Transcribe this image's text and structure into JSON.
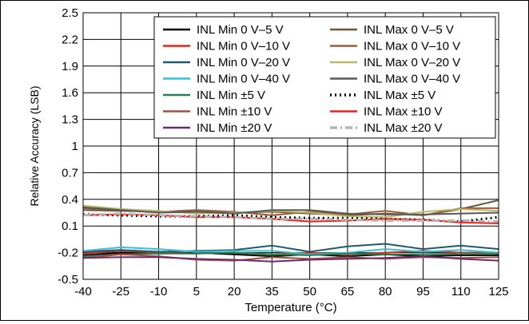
{
  "chart_data": {
    "type": "line",
    "title": "",
    "xlabel": "Temperature (°C)",
    "ylabel": "Relative Accuracy (LSB)",
    "xlim": [
      -40,
      125
    ],
    "ylim": [
      -0.5,
      2.5
    ],
    "x": [
      -40,
      -25,
      -10,
      5,
      20,
      35,
      50,
      65,
      80,
      95,
      110,
      125
    ],
    "x_ticks": [
      "-40",
      "-25",
      "-10",
      "5",
      "20",
      "35",
      "50",
      "65",
      "80",
      "95",
      "110",
      "125"
    ],
    "y_ticks": [
      "-0.5",
      "-0.2",
      "0.1",
      "0.4",
      "0.7",
      "1",
      "1.3",
      "1.6",
      "1.9",
      "2.2",
      "2.5"
    ],
    "y_tick_values": [
      -0.5,
      -0.2,
      0.1,
      0.4,
      0.7,
      1.0,
      1.3,
      1.6,
      1.9,
      2.2,
      2.5
    ],
    "grid": true,
    "legend_position": "top-right",
    "series": [
      {
        "name": "INL Min 0 V–5 V",
        "color": "#000000",
        "dash": "solid",
        "values": [
          -0.23,
          -0.2,
          -0.21,
          -0.2,
          -0.22,
          -0.24,
          -0.22,
          -0.24,
          -0.22,
          -0.24,
          -0.23,
          -0.23
        ]
      },
      {
        "name": "INL Min 0 V–10 V",
        "color": "#e8221c",
        "dash": "solid",
        "values": [
          -0.21,
          -0.18,
          -0.2,
          -0.21,
          -0.2,
          -0.22,
          -0.2,
          -0.22,
          -0.2,
          -0.18,
          -0.2,
          -0.2
        ]
      },
      {
        "name": "INL Min 0 V–20 V",
        "color": "#1f5a6e",
        "dash": "solid",
        "values": [
          -0.19,
          -0.17,
          -0.19,
          -0.18,
          -0.17,
          -0.12,
          -0.19,
          -0.13,
          -0.1,
          -0.16,
          -0.12,
          -0.16
        ]
      },
      {
        "name": "INL Min 0 V–40 V",
        "color": "#2fc3d8",
        "dash": "solid",
        "values": [
          -0.18,
          -0.14,
          -0.16,
          -0.19,
          -0.18,
          -0.18,
          -0.22,
          -0.2,
          -0.16,
          -0.19,
          -0.17,
          -0.2
        ]
      },
      {
        "name": "INL Min ±5 V",
        "color": "#2e7d4f",
        "dash": "solid",
        "values": [
          -0.24,
          -0.22,
          -0.21,
          -0.21,
          -0.2,
          -0.22,
          -0.23,
          -0.21,
          -0.22,
          -0.22,
          -0.21,
          -0.21
        ]
      },
      {
        "name": "INL Min ±10 V",
        "color": "#a05040",
        "dash": "solid",
        "values": [
          -0.26,
          -0.22,
          -0.24,
          -0.28,
          -0.29,
          -0.25,
          -0.27,
          -0.25,
          -0.27,
          -0.25,
          -0.26,
          -0.25
        ]
      },
      {
        "name": "INL Min ±20 V",
        "color": "#6b2a6e",
        "dash": "solid",
        "values": [
          -0.26,
          -0.25,
          -0.25,
          -0.27,
          -0.28,
          -0.3,
          -0.28,
          -0.27,
          -0.26,
          -0.24,
          -0.27,
          -0.29
        ]
      },
      {
        "name": "INL Max 0 V–5 V",
        "color": "#6b5430",
        "dash": "solid",
        "values": [
          0.28,
          0.27,
          0.26,
          0.26,
          0.25,
          0.26,
          0.24,
          0.22,
          0.24,
          0.22,
          0.29,
          0.39
        ]
      },
      {
        "name": "INL Max 0 V–10 V",
        "color": "#9a5a3a",
        "dash": "solid",
        "values": [
          0.3,
          0.28,
          0.26,
          0.28,
          0.26,
          0.22,
          0.26,
          0.23,
          0.27,
          0.22,
          0.3,
          0.3
        ]
      },
      {
        "name": "INL Max 0 V–20 V",
        "color": "#b8b868",
        "dash": "solid",
        "values": [
          0.33,
          0.29,
          0.27,
          0.24,
          0.25,
          0.27,
          0.25,
          0.21,
          0.2,
          0.26,
          0.29,
          0.27
        ]
      },
      {
        "name": "INL Max 0 V–40 V",
        "color": "#585858",
        "dash": "solid",
        "values": [
          0.31,
          0.28,
          0.25,
          0.26,
          0.24,
          0.28,
          0.28,
          0.24,
          0.23,
          0.23,
          0.24,
          0.25
        ]
      },
      {
        "name": "INL Max ±5 V",
        "color": "#000000",
        "dash": "dot",
        "values": [
          0.23,
          0.22,
          0.21,
          0.21,
          0.22,
          0.2,
          0.19,
          0.19,
          0.18,
          0.17,
          0.15,
          0.2
        ]
      },
      {
        "name": "INL Max ±10 V",
        "color": "#e8221c",
        "dash": "solid",
        "values": [
          0.22,
          0.23,
          0.22,
          0.2,
          0.2,
          0.18,
          0.15,
          0.16,
          0.18,
          0.17,
          0.14,
          0.13
        ]
      },
      {
        "name": "INL Max ±20 V",
        "color": "#b4b4b4",
        "dash": "dashdot",
        "values": [
          0.22,
          0.24,
          0.22,
          0.21,
          0.2,
          0.18,
          0.18,
          0.17,
          0.16,
          0.16,
          0.16,
          0.15
        ]
      }
    ]
  }
}
